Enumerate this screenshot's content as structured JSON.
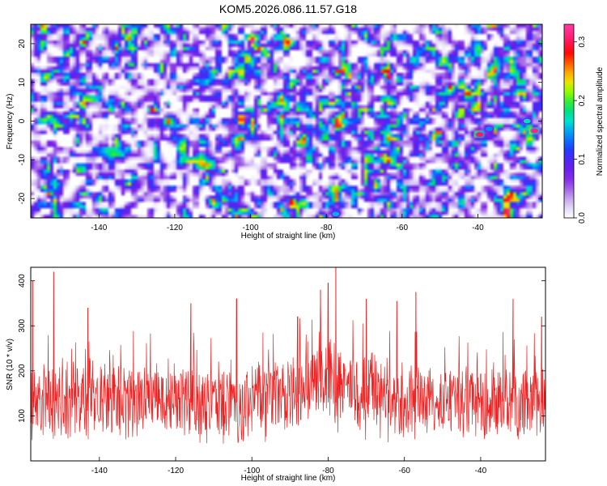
{
  "title": "KOM5.2026.086.11.57.G18",
  "colors": {
    "snr_line": "#ee2222",
    "frame": "#000000",
    "cmap": [
      "#ffffff",
      "#d8c8f4",
      "#a66be6",
      "#7a1ee8",
      "#5a22f0",
      "#1e3cff",
      "#0090ff",
      "#00e0d0",
      "#00e060",
      "#80ff00",
      "#ffe000",
      "#ff7000",
      "#ff0000",
      "#ff1f7a",
      "#ff3aa0"
    ]
  },
  "chart_data": [
    {
      "type": "heatmap",
      "title": "KOM5.2026.086.11.57.G18",
      "xlabel": "Height of straight line (km)",
      "ylabel": "Frequency (Hz)",
      "xlim": [
        -158,
        -23
      ],
      "ylim": [
        -25,
        25
      ],
      "xticks": [
        -140,
        -120,
        -100,
        -80,
        -60,
        -40
      ],
      "xtick_labels": [
        "-140",
        "-120",
        "-100",
        "-80",
        "-60",
        "-40"
      ],
      "yticks": [
        -20,
        -10,
        0,
        10,
        20
      ],
      "ytick_labels": [
        "-20",
        "-10",
        "0",
        "10",
        "20"
      ],
      "colorbar": {
        "label": "Normalized spectral amplitude",
        "range": [
          0,
          0.33
        ],
        "ticks": [
          0.0,
          0.1,
          0.2,
          0.3
        ],
        "tick_labels": [
          "0.0",
          "0.1",
          "0.2",
          "0.3"
        ]
      },
      "notable_peaks": [
        {
          "x": -39.5,
          "y": -3.5,
          "value": 0.3
        },
        {
          "x": -25,
          "y": -2.5,
          "value": 0.31
        },
        {
          "x": -27,
          "y": 0,
          "value": 0.17
        },
        {
          "x": -37,
          "y": -2,
          "value": 0.14
        },
        {
          "x": -77.5,
          "y": -24,
          "value": 0.15
        }
      ]
    },
    {
      "type": "line",
      "xlabel": "Height of straight line (km)",
      "ylabel": "SNR (10 * v/v)",
      "xlim": [
        -158,
        -23
      ],
      "ylim": [
        0,
        430
      ],
      "xticks": [
        -140,
        -120,
        -100,
        -80,
        -60,
        -40
      ],
      "xtick_labels": [
        "-140",
        "-120",
        "-100",
        "-80",
        "-60",
        "-40"
      ],
      "yticks": [
        100,
        200,
        300,
        400
      ],
      "ytick_labels": [
        "100",
        "200",
        "300",
        "400"
      ],
      "series": [
        {
          "name": "SNR",
          "baseline_mean": 130,
          "noise_range": [
            5,
            300
          ],
          "peaks": [
            {
              "x": -152,
              "y": 420
            },
            {
              "x": -157.5,
              "y": 400
            },
            {
              "x": -104,
              "y": 360
            },
            {
              "x": -116,
              "y": 350
            },
            {
              "x": -78,
              "y": 430
            },
            {
              "x": -80,
              "y": 395
            },
            {
              "x": -82,
              "y": 380
            },
            {
              "x": -70,
              "y": 360
            },
            {
              "x": -57,
              "y": 375
            },
            {
              "x": -62,
              "y": 355
            },
            {
              "x": -31.5,
              "y": 360
            },
            {
              "x": -24,
              "y": 320
            },
            {
              "x": -143,
              "y": 340
            },
            {
              "x": -88,
              "y": 320
            }
          ]
        }
      ]
    }
  ]
}
